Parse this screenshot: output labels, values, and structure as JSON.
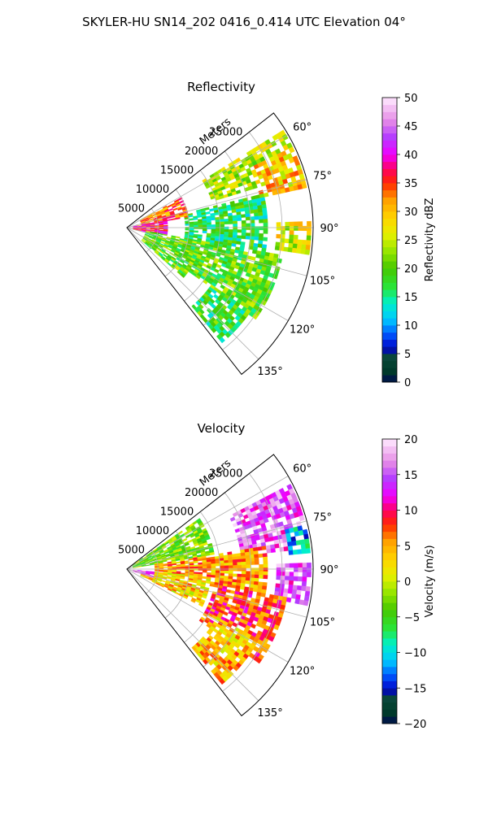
{
  "figure": {
    "suptitle": "SKYLER-HU  SN14_202  0416_0.414 UTC Elevation 04°"
  },
  "chart_data": [
    {
      "type": "heatmap",
      "projection": "polar-sector",
      "title": "Reflectivity",
      "range_label": "Meters",
      "range_ticks": [
        "5000",
        "10000",
        "15000",
        "20000",
        "25000"
      ],
      "range_tick_values": [
        5000,
        10000,
        15000,
        20000,
        25000
      ],
      "range_max": 30000,
      "azimuth_range_deg": [
        52,
        142
      ],
      "azimuth_ticks": [
        "60°",
        "75°",
        "90°",
        "105°",
        "120°",
        "135°"
      ],
      "azimuth_tick_values": [
        60,
        75,
        90,
        105,
        120,
        135
      ],
      "grid": true,
      "colorbar": {
        "label": "Reflectivity dBZ",
        "min": 0,
        "max": 50,
        "ticks": [
          "0",
          "5",
          "10",
          "15",
          "20",
          "25",
          "30",
          "35",
          "40",
          "45",
          "50"
        ]
      },
      "echo_regions": [
        {
          "az": [
            58,
            72
          ],
          "range": [
            14000,
            29000
          ],
          "value": 24
        },
        {
          "az": [
            64,
            76
          ],
          "range": [
            22000,
            29500
          ],
          "value": 29
        },
        {
          "az": [
            88,
            98
          ],
          "range": [
            24000,
            29500
          ],
          "value": 26
        },
        {
          "az": [
            75,
            100
          ],
          "range": [
            9000,
            22000
          ],
          "value": 17
        },
        {
          "az": [
            100,
            125
          ],
          "range": [
            12000,
            25000
          ],
          "value": 20
        },
        {
          "az": [
            125,
            140
          ],
          "range": [
            16000,
            24000
          ],
          "value": 18
        },
        {
          "az": [
            60,
            80
          ],
          "range": [
            2000,
            10000
          ],
          "value": 33
        },
        {
          "az": [
            78,
            102
          ],
          "range": [
            500,
            6000
          ],
          "value": 38
        },
        {
          "az": [
            100,
            130
          ],
          "range": [
            3000,
            12000
          ],
          "value": 20
        }
      ]
    },
    {
      "type": "heatmap",
      "projection": "polar-sector",
      "title": "Velocity",
      "range_label": "Meters",
      "range_ticks": [
        "5000",
        "10000",
        "15000",
        "20000",
        "25000"
      ],
      "range_tick_values": [
        5000,
        10000,
        15000,
        20000,
        25000
      ],
      "range_max": 30000,
      "azimuth_range_deg": [
        52,
        142
      ],
      "azimuth_ticks": [
        "60°",
        "75°",
        "90°",
        "105°",
        "120°",
        "135°"
      ],
      "azimuth_tick_values": [
        60,
        75,
        90,
        105,
        120,
        135
      ],
      "grid": true,
      "colorbar": {
        "label": "Velocity (m/s)",
        "min": -20,
        "max": 20,
        "ticks": [
          "−20",
          "−15",
          "−10",
          "−5",
          "0",
          "5",
          "10",
          "15",
          "20"
        ]
      },
      "echo_regions": [
        {
          "az": [
            55,
            80
          ],
          "range": [
            500,
            14000
          ],
          "value": -3
        },
        {
          "az": [
            62,
            82
          ],
          "range": [
            18000,
            29500
          ],
          "value": 15
        },
        {
          "az": [
            76,
            84
          ],
          "range": [
            26000,
            29500
          ],
          "value": -11
        },
        {
          "az": [
            80,
            100
          ],
          "range": [
            4000,
            22000
          ],
          "value": 5
        },
        {
          "az": [
            88,
            100
          ],
          "range": [
            24000,
            29500
          ],
          "value": 15
        },
        {
          "az": [
            95,
            115
          ],
          "range": [
            2000,
            13000
          ],
          "value": 3
        },
        {
          "az": [
            100,
            125
          ],
          "range": [
            14000,
            26000
          ],
          "value": 8
        },
        {
          "az": [
            118,
            140
          ],
          "range": [
            16000,
            24000
          ],
          "value": 4
        },
        {
          "az": [
            95,
            108
          ],
          "range": [
            500,
            4000
          ],
          "value": 14
        }
      ]
    }
  ]
}
